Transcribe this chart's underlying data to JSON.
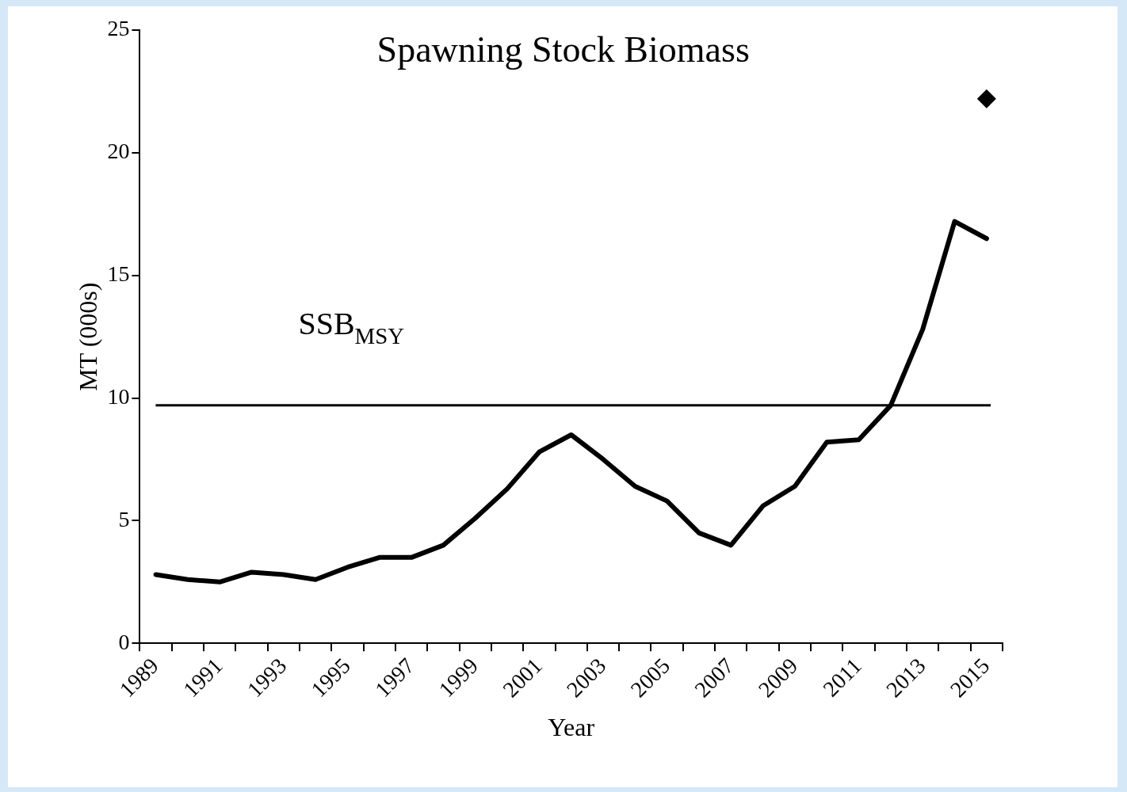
{
  "chart_data": {
    "type": "line",
    "title": "Spawning Stock Biomass",
    "xlabel": "Year",
    "ylabel": "MT (000s)",
    "categories": [
      "1989",
      null,
      "1991",
      null,
      "1993",
      null,
      "1995",
      null,
      "1997",
      null,
      "1999",
      null,
      "2001",
      null,
      "2003",
      null,
      "2005",
      null,
      "2007",
      null,
      "2009",
      null,
      "2011",
      null,
      "2013",
      null,
      "2015"
    ],
    "series": [
      {
        "color": "#000000",
        "marker": "none",
        "values": [
          2.8,
          2.6,
          2.5,
          2.9,
          2.8,
          2.6,
          3.1,
          3.5,
          3.5,
          4.0,
          5.1,
          6.3,
          7.8,
          8.5,
          7.5,
          6.4,
          5.8,
          4.5,
          4.0,
          5.6,
          6.4,
          8.2,
          8.3,
          9.7,
          12.8,
          17.2,
          16.5
        ]
      },
      {
        "type": "scatter",
        "color": "#000000",
        "marker": "diamond",
        "values": [
          null,
          null,
          null,
          null,
          null,
          null,
          null,
          null,
          null,
          null,
          null,
          null,
          null,
          null,
          null,
          null,
          null,
          null,
          null,
          null,
          null,
          null,
          null,
          null,
          null,
          null,
          22.2
        ]
      }
    ],
    "ylim": [
      0,
      25
    ],
    "yticks": [
      0,
      5,
      10,
      15,
      20,
      25
    ],
    "grid": false,
    "legend": false,
    "ref_lines": [
      {
        "axis": "y",
        "value": 9.7,
        "label": "SSB$_{MSY}$",
        "color": "#000000"
      }
    ]
  }
}
